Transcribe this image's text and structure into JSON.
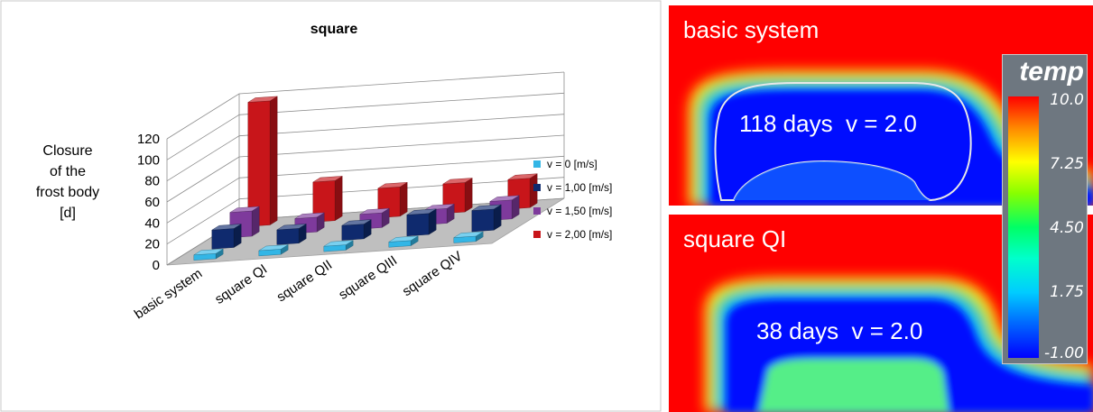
{
  "chart_data": {
    "type": "bar",
    "style": "3d-clustered",
    "title": "square",
    "ylabel": "Closure of the frost body [d]",
    "ylabel_lines": [
      "Closure",
      "of the",
      "frost body",
      "[d]"
    ],
    "ylim": [
      0,
      120
    ],
    "yticks": [
      0,
      20,
      40,
      60,
      80,
      100,
      120
    ],
    "grid": true,
    "legend_position": "right",
    "categories": [
      "basic system",
      "square QI",
      "square QII",
      "square QIII",
      "square QIV"
    ],
    "series": [
      {
        "name": "v = 0 [m/s]",
        "color": "#33b6e6",
        "values": [
          5,
          5,
          5,
          5,
          5
        ]
      },
      {
        "name": "v = 1,00 [m/s]",
        "color": "#0f2a6e",
        "values": [
          18,
          14,
          14,
          20,
          20
        ]
      },
      {
        "name": "v = 1,50 [m/s]",
        "color": "#7e3a9c",
        "values": [
          24,
          14,
          14,
          14,
          18
        ]
      },
      {
        "name": "v = 2,00 [m/s]",
        "color": "#c8151a",
        "values": [
          118,
          38,
          28,
          28,
          28
        ]
      }
    ]
  },
  "simulation": {
    "top": {
      "title": "basic system",
      "label": "118 days  v = 2.0"
    },
    "bottom": {
      "title": "square QI",
      "label": "38 days  v = 2.0"
    },
    "colorbar": {
      "title": "temp",
      "ticks": [
        "10.0",
        "7.25",
        "4.50",
        "1.75",
        "-1.00"
      ]
    }
  }
}
